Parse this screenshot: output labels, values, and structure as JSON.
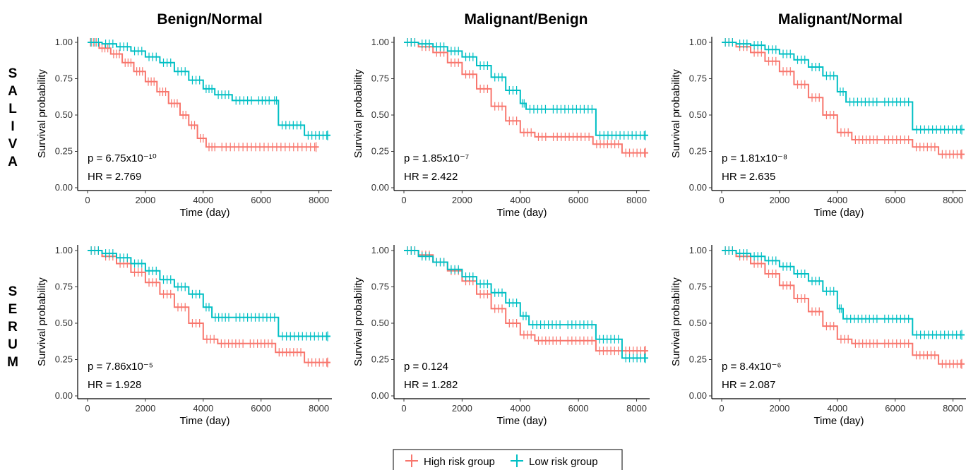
{
  "figure": {
    "columns": [
      "Benign/Normal",
      "Malignant/Benign",
      "Malignant/Normal"
    ],
    "rows": [
      {
        "name": "saliva",
        "letters": [
          "S",
          "A",
          "L",
          "I",
          "V",
          "A"
        ]
      },
      {
        "name": "serum",
        "letters": [
          "S",
          "E",
          "R",
          "U",
          "M"
        ]
      }
    ],
    "colors": {
      "high": "#F8766D",
      "low": "#00BFC4"
    },
    "legend": {
      "placement": "bottom-center",
      "items": [
        "High risk group",
        "Low risk group"
      ]
    }
  },
  "chart_data": [
    {
      "type": "line",
      "row": "saliva",
      "column": "Benign/Normal",
      "title": "Benign/Normal",
      "xlabel": "Time (day)",
      "ylabel": "Survival probability",
      "xlim": [
        0,
        8400
      ],
      "ylim": [
        0,
        1
      ],
      "xticks": [
        "0",
        "2000",
        "4000",
        "6000",
        "8000"
      ],
      "yticks": [
        "0.00",
        "0.25",
        "0.50",
        "0.75",
        "1.00"
      ],
      "p_label": "p = 6.75x10⁻¹⁰",
      "hr_label": "HR = 2.769",
      "series": [
        {
          "name": "High risk group",
          "x": [
            0,
            400,
            800,
            1200,
            1600,
            2000,
            2400,
            2800,
            3200,
            3500,
            3800,
            4100,
            4500,
            8000
          ],
          "y": [
            1.0,
            0.96,
            0.92,
            0.86,
            0.8,
            0.73,
            0.66,
            0.58,
            0.5,
            0.43,
            0.34,
            0.28,
            0.28,
            0.28
          ]
        },
        {
          "name": "Low risk group",
          "x": [
            0,
            500,
            1000,
            1500,
            2000,
            2500,
            3000,
            3500,
            4000,
            4400,
            5000,
            5800,
            6400,
            6600,
            7500,
            8400
          ],
          "y": [
            1.0,
            0.99,
            0.97,
            0.94,
            0.9,
            0.86,
            0.8,
            0.74,
            0.68,
            0.64,
            0.6,
            0.6,
            0.6,
            0.43,
            0.36,
            0.36
          ]
        }
      ]
    },
    {
      "type": "line",
      "row": "saliva",
      "column": "Malignant/Benign",
      "title": "Malignant/Benign",
      "xlabel": "Time (day)",
      "ylabel": "Survival probability",
      "xlim": [
        0,
        8400
      ],
      "ylim": [
        0,
        1
      ],
      "xticks": [
        "0",
        "2000",
        "4000",
        "6000",
        "8000"
      ],
      "yticks": [
        "0.00",
        "0.25",
        "0.50",
        "0.75",
        "1.00"
      ],
      "p_label": "p = 1.85x10⁻⁷",
      "hr_label": "HR = 2.422",
      "series": [
        {
          "name": "High risk group",
          "x": [
            0,
            500,
            1000,
            1500,
            2000,
            2500,
            3000,
            3500,
            4000,
            4500,
            5000,
            6500,
            7500,
            8400
          ],
          "y": [
            1.0,
            0.97,
            0.93,
            0.86,
            0.78,
            0.68,
            0.56,
            0.46,
            0.38,
            0.35,
            0.35,
            0.3,
            0.24,
            0.24
          ]
        },
        {
          "name": "Low risk group",
          "x": [
            0,
            500,
            1000,
            1500,
            2000,
            2500,
            3000,
            3500,
            4000,
            4200,
            5000,
            6600,
            8400
          ],
          "y": [
            1.0,
            0.99,
            0.97,
            0.94,
            0.9,
            0.84,
            0.76,
            0.67,
            0.58,
            0.54,
            0.54,
            0.36,
            0.36
          ]
        }
      ]
    },
    {
      "type": "line",
      "row": "saliva",
      "column": "Malignant/Normal",
      "title": "Malignant/Normal",
      "xlabel": "Time (day)",
      "ylabel": "Survival probability",
      "xlim": [
        0,
        8400
      ],
      "ylim": [
        0,
        1
      ],
      "xticks": [
        "0",
        "2000",
        "4000",
        "6000",
        "8000"
      ],
      "yticks": [
        "0.00",
        "0.25",
        "0.50",
        "0.75",
        "1.00"
      ],
      "p_label": "p = 1.81x10⁻⁸",
      "hr_label": "HR = 2.635",
      "series": [
        {
          "name": "High risk group",
          "x": [
            0,
            500,
            1000,
            1500,
            2000,
            2500,
            3000,
            3500,
            4000,
            4500,
            5500,
            6600,
            7500,
            8400
          ],
          "y": [
            1.0,
            0.97,
            0.93,
            0.87,
            0.8,
            0.71,
            0.62,
            0.5,
            0.38,
            0.33,
            0.33,
            0.28,
            0.23,
            0.23
          ]
        },
        {
          "name": "Low risk group",
          "x": [
            0,
            500,
            1000,
            1500,
            2000,
            2500,
            3000,
            3500,
            4000,
            4300,
            5500,
            6600,
            8400
          ],
          "y": [
            1.0,
            0.99,
            0.98,
            0.95,
            0.92,
            0.88,
            0.83,
            0.77,
            0.66,
            0.59,
            0.59,
            0.4,
            0.4
          ]
        }
      ]
    },
    {
      "type": "line",
      "row": "serum",
      "column": "Benign/Normal",
      "title": "",
      "xlabel": "Time (day)",
      "ylabel": "Survival probability",
      "xlim": [
        0,
        8400
      ],
      "ylim": [
        0,
        1
      ],
      "xticks": [
        "0",
        "2000",
        "4000",
        "6000",
        "8000"
      ],
      "yticks": [
        "0.00",
        "0.25",
        "0.50",
        "0.75",
        "1.00"
      ],
      "p_label": "p = 7.86x10⁻⁵",
      "hr_label": "HR = 1.928",
      "series": [
        {
          "name": "High risk group",
          "x": [
            0,
            500,
            1000,
            1500,
            2000,
            2500,
            3000,
            3500,
            4000,
            4500,
            5500,
            6500,
            7500,
            8400
          ],
          "y": [
            1.0,
            0.96,
            0.91,
            0.85,
            0.78,
            0.7,
            0.61,
            0.5,
            0.39,
            0.36,
            0.36,
            0.3,
            0.23,
            0.23
          ]
        },
        {
          "name": "Low risk group",
          "x": [
            0,
            500,
            1000,
            1500,
            2000,
            2500,
            3000,
            3500,
            4000,
            4300,
            5000,
            6600,
            8400
          ],
          "y": [
            1.0,
            0.98,
            0.95,
            0.91,
            0.86,
            0.8,
            0.75,
            0.7,
            0.61,
            0.54,
            0.54,
            0.41,
            0.41
          ]
        }
      ]
    },
    {
      "type": "line",
      "row": "serum",
      "column": "Malignant/Benign",
      "title": "",
      "xlabel": "Time (day)",
      "ylabel": "Survival probability",
      "xlim": [
        0,
        8400
      ],
      "ylim": [
        0,
        1
      ],
      "xticks": [
        "0",
        "2000",
        "4000",
        "6000",
        "8000"
      ],
      "yticks": [
        "0.00",
        "0.25",
        "0.50",
        "0.75",
        "1.00"
      ],
      "p_label": "p = 0.124",
      "hr_label": "HR = 1.282",
      "series": [
        {
          "name": "High risk group",
          "x": [
            0,
            500,
            1000,
            1500,
            2000,
            2500,
            3000,
            3500,
            4000,
            4500,
            5500,
            6600,
            7500,
            8400
          ],
          "y": [
            1.0,
            0.97,
            0.92,
            0.86,
            0.79,
            0.7,
            0.6,
            0.5,
            0.42,
            0.38,
            0.38,
            0.31,
            0.31,
            0.31
          ]
        },
        {
          "name": "Low risk group",
          "x": [
            0,
            500,
            1000,
            1500,
            2000,
            2500,
            3000,
            3500,
            4000,
            4300,
            5500,
            6600,
            7500,
            8400
          ],
          "y": [
            1.0,
            0.96,
            0.92,
            0.87,
            0.82,
            0.77,
            0.71,
            0.64,
            0.55,
            0.49,
            0.49,
            0.39,
            0.26,
            0.26
          ]
        }
      ]
    },
    {
      "type": "line",
      "row": "serum",
      "column": "Malignant/Normal",
      "title": "",
      "xlabel": "Time (day)",
      "ylabel": "Survival probability",
      "xlim": [
        0,
        8400
      ],
      "ylim": [
        0,
        1
      ],
      "xticks": [
        "0",
        "2000",
        "4000",
        "6000",
        "8000"
      ],
      "yticks": [
        "0.00",
        "0.25",
        "0.50",
        "0.75",
        "1.00"
      ],
      "p_label": "p = 8.4x10⁻⁶",
      "hr_label": "HR = 2.087",
      "series": [
        {
          "name": "High risk group",
          "x": [
            0,
            500,
            1000,
            1500,
            2000,
            2500,
            3000,
            3500,
            4000,
            4500,
            5500,
            6600,
            7500,
            8400
          ],
          "y": [
            1.0,
            0.96,
            0.91,
            0.84,
            0.76,
            0.67,
            0.58,
            0.48,
            0.39,
            0.36,
            0.36,
            0.28,
            0.22,
            0.22
          ]
        },
        {
          "name": "Low risk group",
          "x": [
            0,
            500,
            1000,
            1500,
            2000,
            2500,
            3000,
            3500,
            4000,
            4200,
            5500,
            6600,
            8400
          ],
          "y": [
            1.0,
            0.98,
            0.96,
            0.93,
            0.89,
            0.84,
            0.79,
            0.72,
            0.6,
            0.53,
            0.53,
            0.42,
            0.42
          ]
        }
      ]
    }
  ]
}
